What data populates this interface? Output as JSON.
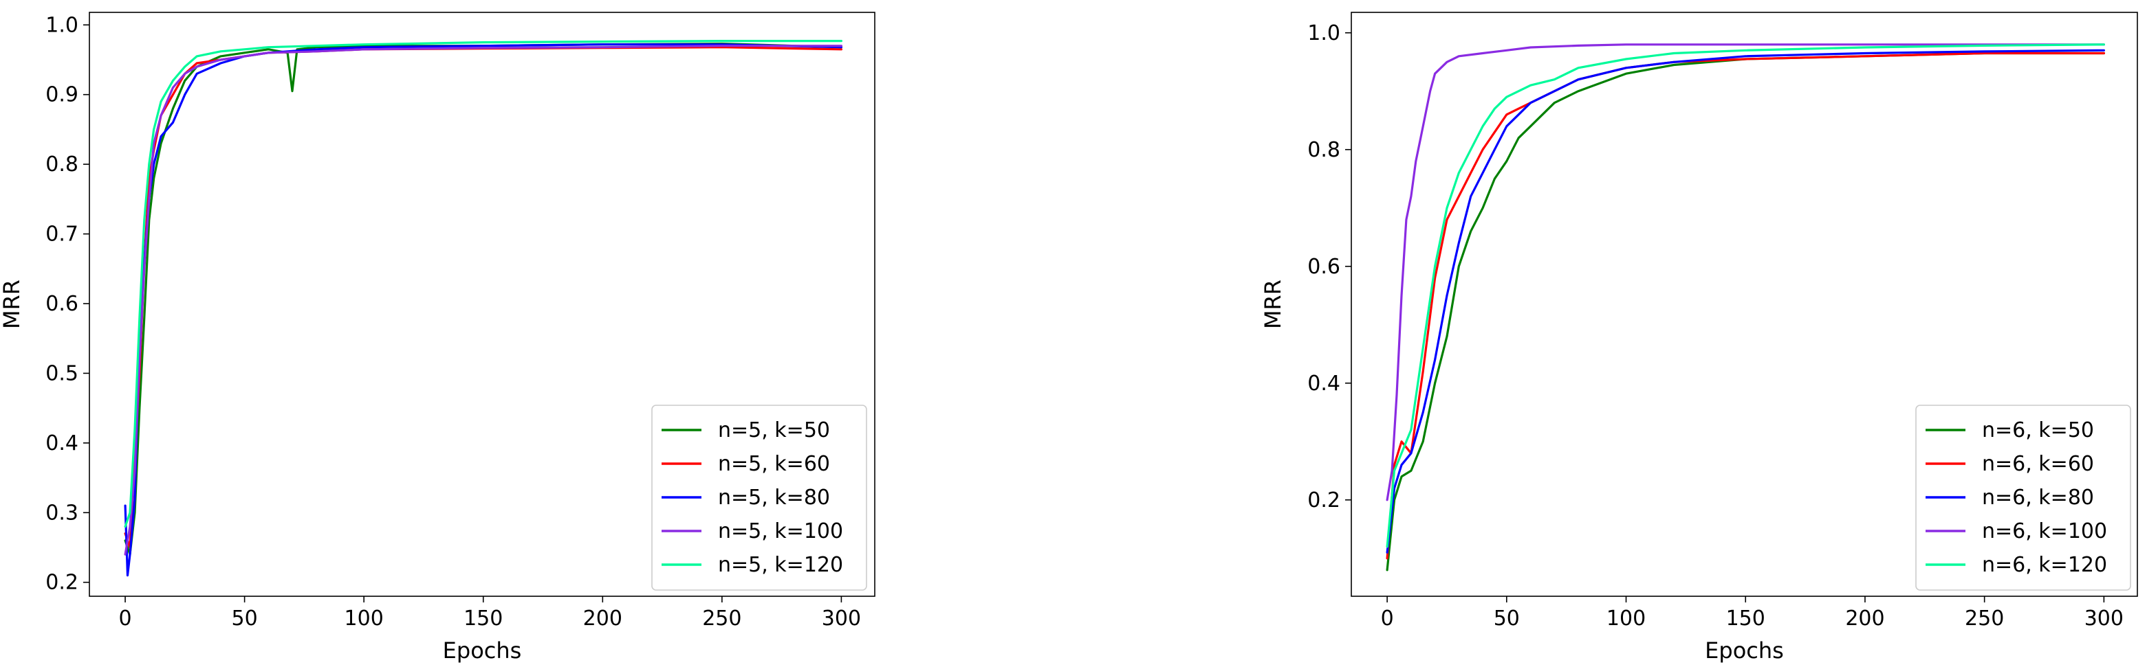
{
  "chart_data": [
    {
      "type": "line",
      "title": "",
      "xlabel": "Epochs",
      "ylabel": "MRR",
      "xlim": [
        -15,
        314
      ],
      "ylim": [
        0.18,
        1.018
      ],
      "xticks": [
        0,
        50,
        100,
        150,
        200,
        250,
        300
      ],
      "yticks": [
        0.2,
        0.3,
        0.4,
        0.5,
        0.6,
        0.7,
        0.8,
        0.9,
        1.0
      ],
      "ytick_labels": [
        "0.2",
        "0.3",
        "0.4",
        "0.5",
        "0.6",
        "0.7",
        "0.8",
        "0.9",
        "1.0"
      ],
      "legend_position": "lower right",
      "grid": false,
      "series": [
        {
          "name": "n=5, k=50",
          "color": "#008000",
          "x": [
            0,
            2,
            4,
            6,
            8,
            10,
            12,
            15,
            20,
            25,
            30,
            40,
            50,
            60,
            68,
            70,
            72,
            80,
            100,
            150,
            200,
            250,
            300
          ],
          "y": [
            0.26,
            0.24,
            0.3,
            0.45,
            0.58,
            0.72,
            0.78,
            0.83,
            0.88,
            0.92,
            0.94,
            0.955,
            0.96,
            0.965,
            0.96,
            0.905,
            0.965,
            0.968,
            0.97,
            0.97,
            0.972,
            0.973,
            0.968
          ]
        },
        {
          "name": "n=5, k=60",
          "color": "#ff0000",
          "x": [
            0,
            2,
            4,
            6,
            8,
            10,
            12,
            15,
            20,
            25,
            30,
            40,
            50,
            60,
            80,
            100,
            150,
            200,
            250,
            300
          ],
          "y": [
            0.27,
            0.25,
            0.38,
            0.5,
            0.66,
            0.78,
            0.82,
            0.87,
            0.9,
            0.93,
            0.945,
            0.95,
            0.955,
            0.96,
            0.962,
            0.965,
            0.966,
            0.967,
            0.968,
            0.965
          ]
        },
        {
          "name": "n=5, k=80",
          "color": "#0000ff",
          "x": [
            0,
            1,
            2,
            4,
            6,
            8,
            10,
            12,
            15,
            20,
            25,
            30,
            40,
            50,
            60,
            80,
            100,
            150,
            200,
            250,
            300
          ],
          "y": [
            0.31,
            0.21,
            0.24,
            0.32,
            0.55,
            0.66,
            0.75,
            0.8,
            0.84,
            0.86,
            0.9,
            0.93,
            0.945,
            0.955,
            0.96,
            0.965,
            0.968,
            0.97,
            0.972,
            0.972,
            0.968
          ]
        },
        {
          "name": "n=5, k=100",
          "color": "#8a2be2",
          "x": [
            0,
            2,
            4,
            6,
            8,
            10,
            12,
            15,
            20,
            25,
            30,
            40,
            50,
            60,
            80,
            100,
            150,
            200,
            250,
            300
          ],
          "y": [
            0.24,
            0.28,
            0.36,
            0.52,
            0.65,
            0.75,
            0.83,
            0.87,
            0.91,
            0.93,
            0.94,
            0.95,
            0.955,
            0.96,
            0.962,
            0.965,
            0.967,
            0.968,
            0.97,
            0.97
          ]
        },
        {
          "name": "n=5, k=120",
          "color": "#00fa9a",
          "x": [
            0,
            2,
            4,
            6,
            8,
            10,
            12,
            15,
            20,
            25,
            30,
            40,
            50,
            60,
            80,
            100,
            150,
            200,
            250,
            300
          ],
          "y": [
            0.28,
            0.3,
            0.42,
            0.58,
            0.72,
            0.8,
            0.85,
            0.89,
            0.92,
            0.94,
            0.955,
            0.962,
            0.965,
            0.968,
            0.97,
            0.972,
            0.975,
            0.976,
            0.977,
            0.977
          ]
        }
      ]
    },
    {
      "type": "line",
      "title": "",
      "xlabel": "Epochs",
      "ylabel": "MRR",
      "xlim": [
        -15,
        314
      ],
      "ylim": [
        0.035,
        1.035
      ],
      "xticks": [
        0,
        50,
        100,
        150,
        200,
        250,
        300
      ],
      "yticks": [
        0.2,
        0.4,
        0.6,
        0.8,
        1.0
      ],
      "ytick_labels": [
        "0.2",
        "0.4",
        "0.6",
        "0.8",
        "1.0"
      ],
      "legend_position": "lower right",
      "grid": false,
      "series": [
        {
          "name": "n=6, k=50",
          "color": "#008000",
          "x": [
            0,
            3,
            6,
            10,
            15,
            20,
            25,
            30,
            35,
            40,
            45,
            50,
            55,
            60,
            70,
            80,
            100,
            120,
            150,
            200,
            250,
            300
          ],
          "y": [
            0.08,
            0.2,
            0.24,
            0.25,
            0.3,
            0.4,
            0.48,
            0.6,
            0.66,
            0.7,
            0.75,
            0.78,
            0.82,
            0.84,
            0.88,
            0.9,
            0.93,
            0.945,
            0.955,
            0.96,
            0.965,
            0.965
          ]
        },
        {
          "name": "n=6, k=60",
          "color": "#ff0000",
          "x": [
            0,
            3,
            6,
            10,
            15,
            20,
            25,
            30,
            35,
            40,
            45,
            50,
            55,
            60,
            70,
            80,
            100,
            120,
            150,
            200,
            250,
            300
          ],
          "y": [
            0.1,
            0.26,
            0.3,
            0.28,
            0.42,
            0.58,
            0.68,
            0.72,
            0.76,
            0.8,
            0.83,
            0.86,
            0.87,
            0.88,
            0.9,
            0.92,
            0.94,
            0.95,
            0.955,
            0.96,
            0.965,
            0.965
          ]
        },
        {
          "name": "n=6, k=80",
          "color": "#0000ff",
          "x": [
            0,
            3,
            6,
            10,
            15,
            20,
            25,
            30,
            35,
            40,
            45,
            50,
            55,
            60,
            70,
            80,
            100,
            120,
            150,
            200,
            250,
            300
          ],
          "y": [
            0.11,
            0.22,
            0.26,
            0.28,
            0.35,
            0.44,
            0.55,
            0.64,
            0.72,
            0.76,
            0.8,
            0.84,
            0.86,
            0.88,
            0.9,
            0.92,
            0.94,
            0.95,
            0.96,
            0.965,
            0.968,
            0.97
          ]
        },
        {
          "name": "n=6, k=100",
          "color": "#8a2be2",
          "x": [
            0,
            2,
            4,
            6,
            8,
            10,
            12,
            14,
            16,
            18,
            20,
            25,
            30,
            40,
            50,
            60,
            80,
            100,
            150,
            200,
            250,
            300
          ],
          "y": [
            0.2,
            0.25,
            0.38,
            0.55,
            0.68,
            0.72,
            0.78,
            0.82,
            0.86,
            0.9,
            0.93,
            0.95,
            0.96,
            0.965,
            0.97,
            0.975,
            0.978,
            0.98,
            0.98,
            0.98,
            0.98,
            0.98
          ]
        },
        {
          "name": "n=6, k=120",
          "color": "#00fa9a",
          "x": [
            0,
            3,
            6,
            10,
            15,
            20,
            25,
            30,
            35,
            40,
            45,
            50,
            60,
            70,
            80,
            100,
            120,
            150,
            200,
            250,
            300
          ],
          "y": [
            0.12,
            0.25,
            0.28,
            0.32,
            0.46,
            0.6,
            0.7,
            0.76,
            0.8,
            0.84,
            0.87,
            0.89,
            0.91,
            0.92,
            0.94,
            0.955,
            0.965,
            0.97,
            0.975,
            0.978,
            0.98
          ]
        }
      ]
    }
  ]
}
